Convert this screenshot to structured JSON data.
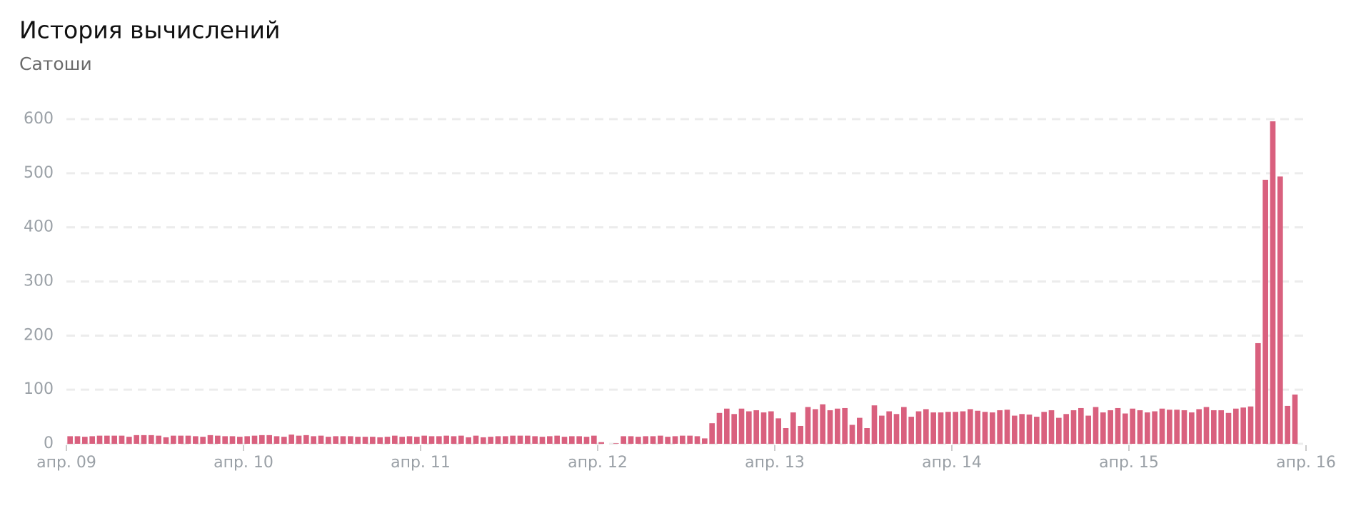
{
  "chart_data": {
    "type": "bar",
    "title": "История вычислений",
    "subtitle": "Сатоши",
    "color": "#d9607e",
    "grid": true,
    "ylim": [
      0,
      600
    ],
    "yticks": [
      0,
      100,
      200,
      300,
      400,
      500,
      600
    ],
    "xlim": [
      0,
      168
    ],
    "xticks": [
      {
        "value": 0,
        "label": "апр. 09"
      },
      {
        "value": 24,
        "label": "апр. 10"
      },
      {
        "value": 48,
        "label": "апр. 11"
      },
      {
        "value": 72,
        "label": "апр. 12"
      },
      {
        "value": 96,
        "label": "апр. 13"
      },
      {
        "value": 120,
        "label": "апр. 14"
      },
      {
        "value": 144,
        "label": "апр. 15"
      },
      {
        "value": 168,
        "label": "апр. 16"
      }
    ],
    "values": [
      14,
      14,
      13,
      14,
      15,
      15,
      15,
      15,
      13,
      16,
      16,
      16,
      15,
      12,
      15,
      15,
      15,
      14,
      13,
      16,
      15,
      14,
      14,
      13,
      14,
      15,
      16,
      16,
      14,
      13,
      17,
      15,
      16,
      14,
      15,
      13,
      14,
      14,
      14,
      13,
      13,
      13,
      12,
      13,
      15,
      13,
      14,
      13,
      15,
      14,
      14,
      15,
      14,
      15,
      12,
      15,
      12,
      13,
      14,
      14,
      15,
      15,
      15,
      14,
      13,
      14,
      15,
      13,
      14,
      14,
      13,
      15,
      3,
      0,
      1,
      14,
      14,
      13,
      14,
      14,
      15,
      13,
      14,
      15,
      15,
      14,
      10,
      38,
      57,
      65,
      55,
      65,
      60,
      62,
      58,
      60,
      47,
      29,
      58,
      33,
      68,
      64,
      73,
      62,
      65,
      66,
      35,
      48,
      29,
      71,
      52,
      60,
      55,
      68,
      50,
      60,
      64,
      58,
      58,
      59,
      59,
      60,
      64,
      61,
      59,
      58,
      62,
      63,
      52,
      55,
      54,
      50,
      59,
      62,
      48,
      55,
      62,
      66,
      52,
      68,
      58,
      62,
      66,
      56,
      65,
      62,
      58,
      60,
      65,
      63,
      63,
      62,
      58,
      64,
      68,
      62,
      62,
      57,
      65,
      67,
      69,
      186,
      488,
      596,
      494,
      70,
      91
    ]
  }
}
